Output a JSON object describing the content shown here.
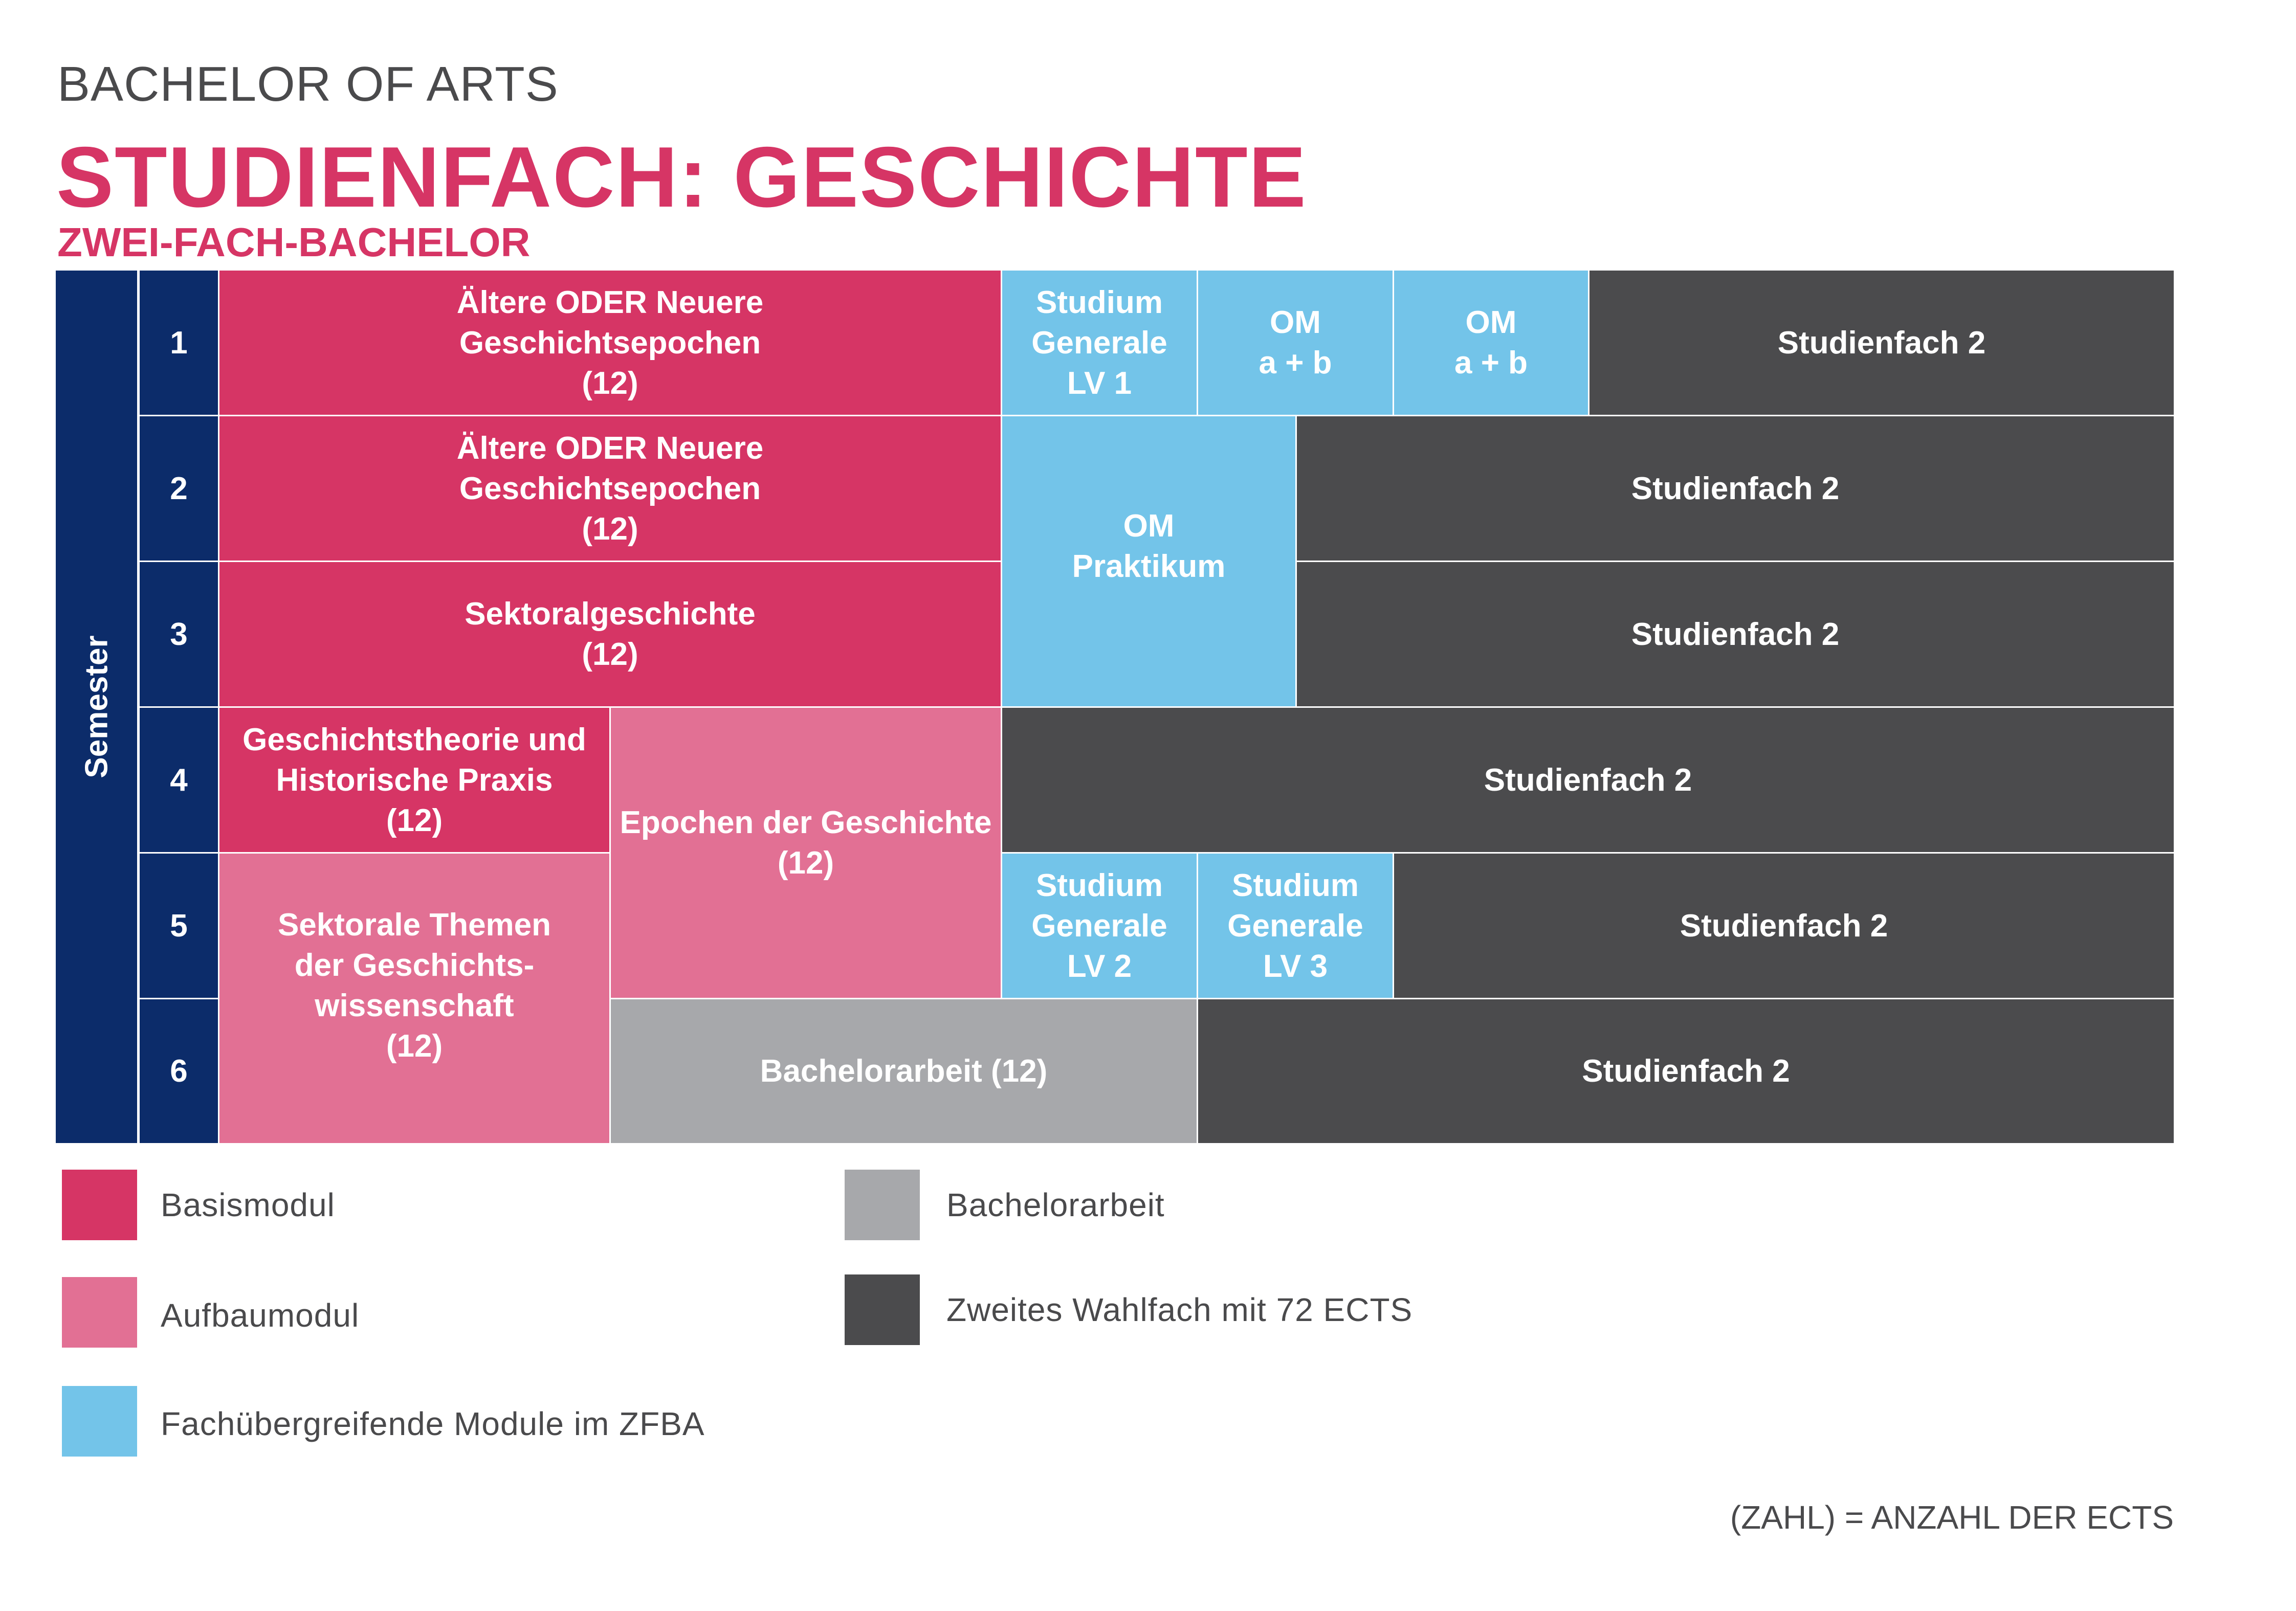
{
  "header": {
    "subtitle_top": "BACHELOR OF ARTS",
    "title": "STUDIENFACH: GESCHICHTE",
    "subtitle": "ZWEI-FACH-BACHELOR"
  },
  "grid": {
    "axis_label": "Semester",
    "semesters": [
      "1",
      "2",
      "3",
      "4",
      "5",
      "6"
    ],
    "cells": [
      {
        "text": "Ältere ODER Neuere\nGeschichtsepochen\n(12)",
        "type": "Basismodul"
      },
      {
        "text": "Studium\nGenerale\nLV 1",
        "type": "Fachübergreifend"
      },
      {
        "text": "OM\na + b",
        "type": "Fachübergreifend"
      },
      {
        "text": "OM\na + b",
        "type": "Fachübergreifend"
      },
      {
        "text": "Studienfach 2",
        "type": "Zweites Wahlfach"
      },
      {
        "text": "Ältere ODER Neuere\nGeschichtsepochen\n(12)",
        "type": "Basismodul"
      },
      {
        "text": "OM\nPraktikum",
        "type": "Fachübergreifend"
      },
      {
        "text": "Studienfach 2",
        "type": "Zweites Wahlfach"
      },
      {
        "text": "Sektoralgeschichte\n(12)",
        "type": "Basismodul"
      },
      {
        "text": "Studienfach 2",
        "type": "Zweites Wahlfach"
      },
      {
        "text": "Geschichtstheorie und\nHistorische Praxis\n(12)",
        "type": "Basismodul"
      },
      {
        "text": "Epochen der Geschichte\n(12)",
        "type": "Aufbaumodul"
      },
      {
        "text": "Studienfach 2",
        "type": "Zweites Wahlfach"
      },
      {
        "text": "Sektorale Themen\nder Geschichts-\nwissenschaft\n(12)",
        "type": "Aufbaumodul"
      },
      {
        "text": "Studium\nGenerale\nLV 2",
        "type": "Fachübergreifend"
      },
      {
        "text": "Studium\nGenerale\nLV 3",
        "type": "Fachübergreifend"
      },
      {
        "text": "Studienfach 2",
        "type": "Zweites Wahlfach"
      },
      {
        "text": "Bachelorarbeit (12)",
        "type": "Bachelorarbeit"
      },
      {
        "text": "Studienfach 2",
        "type": "Zweites Wahlfach"
      }
    ]
  },
  "legend": [
    {
      "label": "Basismodul",
      "color": "#d63565"
    },
    {
      "label": "Aufbaumodul",
      "color": "#e27094"
    },
    {
      "label": "Fachübergreifende Module im ZFBA",
      "color": "#73c4e9"
    },
    {
      "label": "Bachelorarbeit",
      "color": "#a7a8ab"
    },
    {
      "label": "Zweites Wahlfach mit 72 ECTS",
      "color": "#4b4b4d"
    }
  ],
  "footnote": "(ZAHL) = ANZAHL DER ECTS",
  "colors": {
    "semester": "#0c2c6a",
    "title": "#d63565",
    "text": "#4a4a4c"
  }
}
